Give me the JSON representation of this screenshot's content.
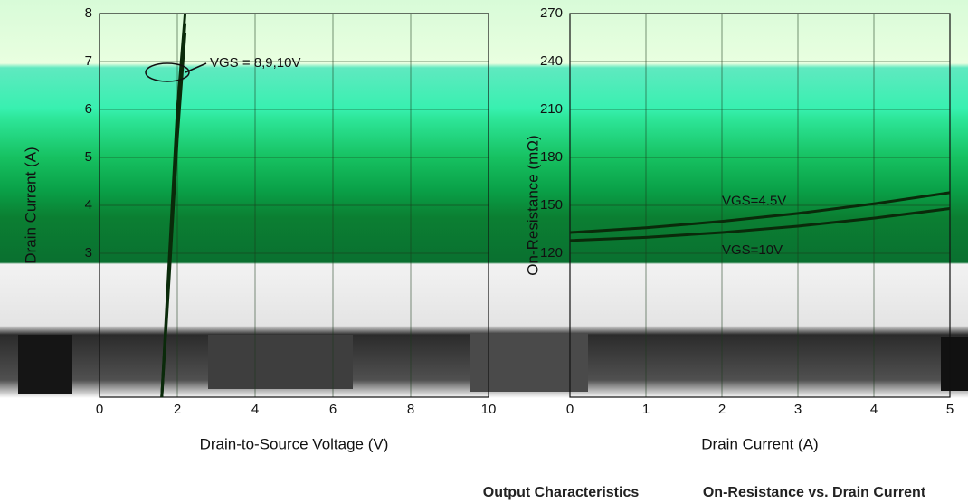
{
  "chart_data": [
    {
      "type": "line",
      "ylabel": "Drain Current (A)",
      "xlabel": "Drain-to-Source Voltage (V)",
      "caption": "Output Characteristics",
      "annotation": "VGS = 8,9,10V",
      "x": [
        1.6,
        1.8,
        2.0,
        2.2
      ],
      "series": [
        {
          "name": "8V",
          "color": "#0a2a0a",
          "values": [
            0,
            3,
            6,
            8
          ]
        },
        {
          "name": "9V",
          "color": "#0a2a0a",
          "values": [
            0,
            2.8,
            5.7,
            7.8
          ]
        },
        {
          "name": "10V",
          "color": "#0a2a0a",
          "values": [
            0,
            2.6,
            5.4,
            7.6
          ]
        }
      ],
      "xlim": [
        0,
        10
      ],
      "xticks": [
        0,
        2,
        4,
        6,
        8,
        10
      ],
      "ylim": [
        0,
        8
      ],
      "yticks": [
        3,
        4,
        5,
        6,
        7,
        8
      ],
      "grid": true
    },
    {
      "type": "line",
      "ylabel": "On-Resistance (mΩ)",
      "xlabel": "Drain Current (A)",
      "caption": "On-Resistance vs. Drain Current",
      "x": [
        0,
        1,
        2,
        3,
        4,
        5
      ],
      "series": [
        {
          "name": "VGS=4.5V",
          "color": "#0a2a0a",
          "values": [
            133,
            136,
            140,
            145,
            151,
            158
          ]
        },
        {
          "name": "VGS=10V",
          "color": "#0a2a0a",
          "values": [
            128,
            130,
            133,
            137,
            142,
            148
          ]
        }
      ],
      "xlim": [
        0,
        5
      ],
      "xticks": [
        0,
        1,
        2,
        3,
        4,
        5
      ],
      "ylim": [
        30,
        270
      ],
      "yticks": [
        120,
        150,
        180,
        210,
        240,
        270
      ],
      "grid": true
    }
  ]
}
